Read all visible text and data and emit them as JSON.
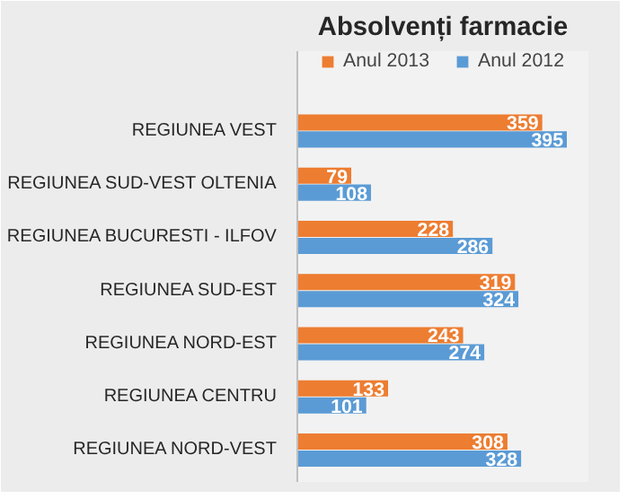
{
  "chart_data": {
    "type": "bar",
    "orientation": "horizontal",
    "title": "Absolvenți farmacie",
    "categories": [
      "REGIUNEA VEST",
      "REGIUNEA SUD-VEST OLTENIA",
      "REGIUNEA BUCURESTI - ILFOV",
      "REGIUNEA SUD-EST",
      "REGIUNEA NORD-EST",
      "REGIUNEA CENTRU",
      "REGIUNEA NORD-VEST"
    ],
    "series": [
      {
        "name": "Anul 2013",
        "color": "#ed7d31",
        "values": [
          359,
          79,
          228,
          319,
          243,
          133,
          308
        ]
      },
      {
        "name": "Anul 2012",
        "color": "#5b9bd5",
        "values": [
          395,
          108,
          286,
          324,
          274,
          101,
          328
        ]
      }
    ],
    "data_labels": true,
    "legend": "top"
  }
}
